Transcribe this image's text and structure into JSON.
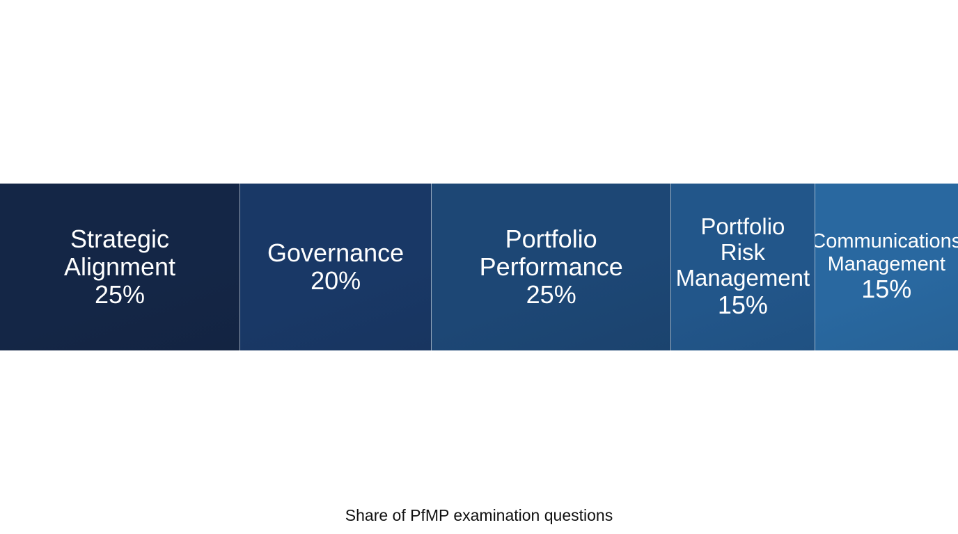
{
  "chart_data": {
    "type": "bar",
    "orientation": "horizontal-stacked",
    "categories": [
      "Strategic\nAlignment",
      "Governance",
      "Portfolio\nPerformance",
      "Portfolio\nRisk\nManagement",
      "Communications\nManagement"
    ],
    "values": [
      25,
      20,
      25,
      15,
      15
    ],
    "value_labels": [
      "25%",
      "20%",
      "25%",
      "15%",
      "15%"
    ],
    "colors": [
      "#142646",
      "#193866",
      "#1d4775",
      "#22568a",
      "#2968a0"
    ],
    "caption": "Share of PfMP examination questions",
    "legend": "none",
    "grid": false
  }
}
